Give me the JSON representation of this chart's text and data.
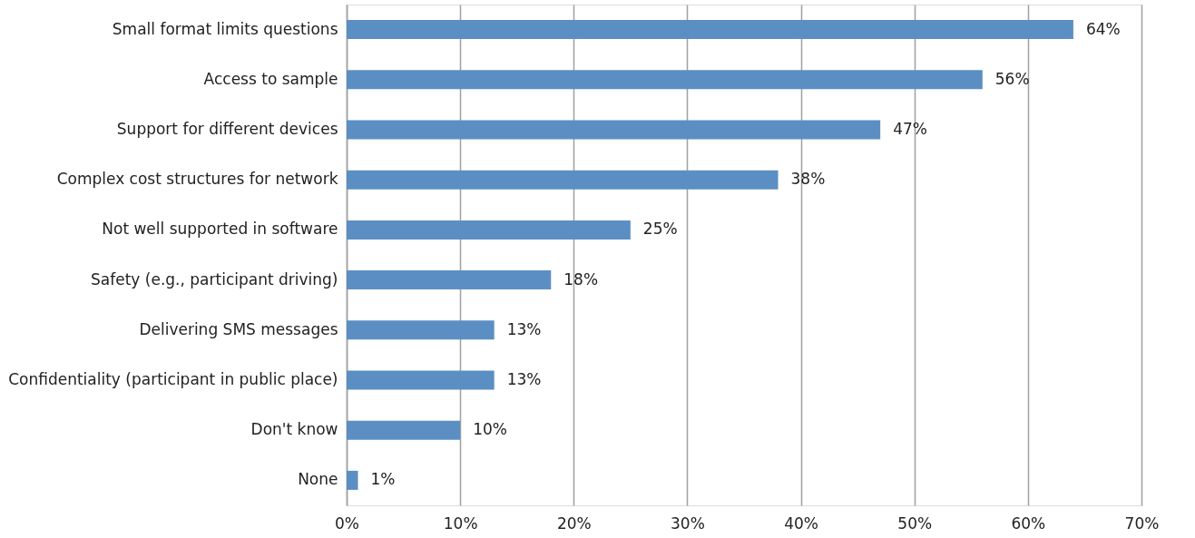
{
  "chart_data": {
    "type": "bar",
    "orientation": "horizontal",
    "categories": [
      "Small format limits questions",
      "Access to sample",
      "Support for different devices",
      "Complex cost structures for network",
      "Not well supported in software",
      "Safety (e.g., participant driving)",
      "Delivering SMS messages",
      "Confidentiality (participant in public place)",
      "Don't know",
      "None"
    ],
    "values": [
      64,
      56,
      47,
      38,
      25,
      18,
      13,
      13,
      10,
      1
    ],
    "value_labels": [
      "64%",
      "56%",
      "47%",
      "38%",
      "25%",
      "18%",
      "13%",
      "13%",
      "10%",
      "1%"
    ],
    "color": "#5b8fc3",
    "xlim": [
      0,
      70
    ],
    "xticks": [
      {
        "value": 0,
        "label": "0%"
      },
      {
        "value": 10,
        "label": "10%"
      },
      {
        "value": 20,
        "label": "20%"
      },
      {
        "value": 30,
        "label": "30%"
      },
      {
        "value": 40,
        "label": "40%"
      },
      {
        "value": 50,
        "label": "50%"
      },
      {
        "value": 60,
        "label": "60%"
      },
      {
        "value": 70,
        "label": "70%"
      }
    ],
    "grid": "x"
  }
}
